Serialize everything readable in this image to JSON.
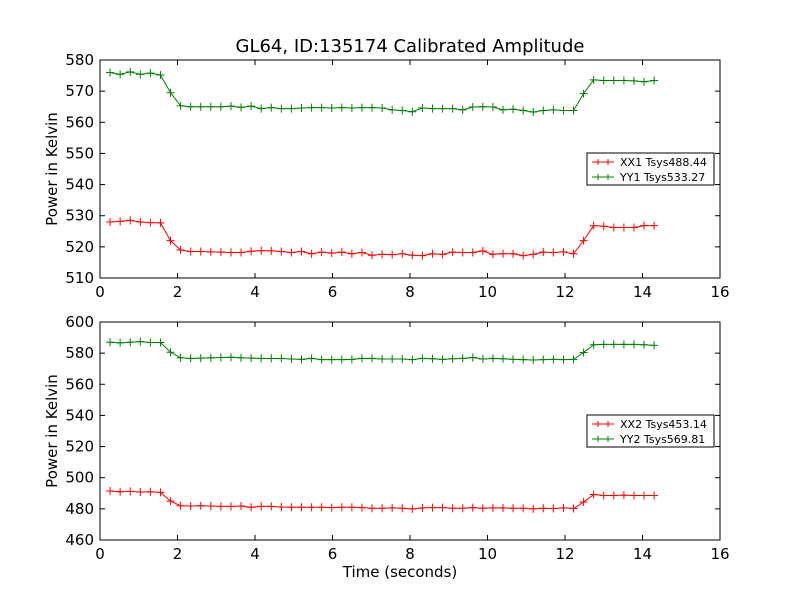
{
  "chart_data": [
    {
      "type": "line",
      "title": "GL64, ID:135174 Calibrated Amplitude",
      "xlabel": "",
      "ylabel": "Power in Kelvin",
      "xlim": [
        0,
        16
      ],
      "ylim": [
        510,
        580
      ],
      "xticks": [
        "0",
        "2",
        "4",
        "6",
        "8",
        "10",
        "12",
        "14",
        "16"
      ],
      "yticks": [
        "510",
        "520",
        "530",
        "540",
        "550",
        "560",
        "570",
        "580"
      ],
      "grid": false,
      "legend_position": "right",
      "x": [
        0.26,
        0.52,
        0.78,
        1.04,
        1.3,
        1.56,
        1.82,
        2.08,
        2.34,
        2.6,
        2.86,
        3.12,
        3.38,
        3.64,
        3.9,
        4.16,
        4.42,
        4.68,
        4.94,
        5.2,
        5.46,
        5.72,
        5.98,
        6.24,
        6.5,
        6.76,
        7.02,
        7.28,
        7.54,
        7.8,
        8.06,
        8.32,
        8.58,
        8.84,
        9.1,
        9.36,
        9.62,
        9.88,
        10.14,
        10.4,
        10.66,
        10.92,
        11.18,
        11.44,
        11.7,
        11.96,
        12.22,
        12.48,
        12.74,
        13.0,
        13.26,
        13.52,
        13.78,
        14.04,
        14.3
      ],
      "series": [
        {
          "name": "XX1 Tsys488.44",
          "color": "#ff0000",
          "values": [
            528.0,
            528.2,
            528.5,
            528.0,
            527.8,
            527.7,
            522.0,
            519.0,
            518.5,
            518.5,
            518.4,
            518.3,
            518.2,
            518.2,
            518.6,
            518.8,
            518.7,
            518.5,
            518.2,
            518.5,
            517.8,
            518.3,
            518.0,
            518.3,
            517.8,
            518.2,
            517.3,
            517.6,
            517.5,
            517.8,
            517.3,
            517.2,
            517.8,
            517.6,
            518.3,
            518.2,
            518.2,
            518.7,
            517.6,
            517.8,
            517.8,
            517.2,
            517.6,
            518.3,
            518.2,
            518.4,
            517.8,
            522.0,
            526.8,
            526.6,
            526.2,
            526.2,
            526.2,
            526.8,
            526.8
          ]
        },
        {
          "name": "YY1 Tsys533.27",
          "color": "#008000",
          "values": [
            576.0,
            575.4,
            576.2,
            575.4,
            575.8,
            575.2,
            569.5,
            565.3,
            565.0,
            565.0,
            565.0,
            565.0,
            565.2,
            564.8,
            565.2,
            564.4,
            564.7,
            564.4,
            564.4,
            564.6,
            564.7,
            564.7,
            564.6,
            564.7,
            564.6,
            564.7,
            564.7,
            564.6,
            564.0,
            563.8,
            563.4,
            564.6,
            564.4,
            564.4,
            564.4,
            564.0,
            564.9,
            565.0,
            564.9,
            564.0,
            564.2,
            563.8,
            563.3,
            563.8,
            564.0,
            563.8,
            563.8,
            569.2,
            573.6,
            573.4,
            573.4,
            573.4,
            573.3,
            573.0,
            573.4
          ]
        }
      ]
    },
    {
      "type": "line",
      "title": "",
      "xlabel": "Time (seconds)",
      "ylabel": "Power in Kelvin",
      "xlim": [
        0,
        16
      ],
      "ylim": [
        460,
        600
      ],
      "xticks": [
        "0",
        "2",
        "4",
        "6",
        "8",
        "10",
        "12",
        "14",
        "16"
      ],
      "yticks": [
        "460",
        "480",
        "500",
        "520",
        "540",
        "560",
        "580",
        "600"
      ],
      "grid": false,
      "legend_position": "right",
      "x": [
        0.26,
        0.52,
        0.78,
        1.04,
        1.3,
        1.56,
        1.82,
        2.08,
        2.34,
        2.6,
        2.86,
        3.12,
        3.38,
        3.64,
        3.9,
        4.16,
        4.42,
        4.68,
        4.94,
        5.2,
        5.46,
        5.72,
        5.98,
        6.24,
        6.5,
        6.76,
        7.02,
        7.28,
        7.54,
        7.8,
        8.06,
        8.32,
        8.58,
        8.84,
        9.1,
        9.36,
        9.62,
        9.88,
        10.14,
        10.4,
        10.66,
        10.92,
        11.18,
        11.44,
        11.7,
        11.96,
        12.22,
        12.48,
        12.74,
        13.0,
        13.26,
        13.52,
        13.78,
        14.04,
        14.3
      ],
      "series": [
        {
          "name": "XX2 Tsys453.14",
          "color": "#ff0000",
          "values": [
            491.5,
            491.0,
            491.2,
            490.8,
            491.0,
            490.6,
            485.0,
            482.0,
            481.8,
            482.0,
            481.8,
            481.6,
            481.6,
            481.8,
            481.0,
            481.6,
            481.6,
            481.2,
            481.0,
            481.0,
            481.0,
            481.0,
            480.8,
            481.0,
            481.0,
            480.8,
            480.4,
            480.4,
            480.6,
            480.4,
            480.0,
            480.6,
            480.8,
            480.8,
            480.4,
            480.4,
            480.8,
            480.4,
            480.6,
            480.6,
            480.4,
            480.4,
            480.0,
            480.4,
            480.2,
            480.6,
            480.2,
            484.4,
            489.2,
            488.6,
            488.6,
            488.8,
            488.6,
            488.6,
            488.6
          ]
        },
        {
          "name": "YY2 Tsys569.81",
          "color": "#008000",
          "values": [
            587.0,
            586.6,
            587.0,
            587.4,
            586.8,
            586.8,
            580.6,
            577.0,
            576.6,
            576.8,
            577.0,
            577.2,
            577.4,
            577.0,
            576.8,
            576.6,
            576.6,
            576.6,
            576.2,
            576.0,
            576.6,
            575.8,
            575.8,
            575.8,
            576.0,
            576.6,
            576.6,
            576.2,
            576.2,
            576.2,
            575.8,
            576.6,
            576.4,
            576.0,
            576.4,
            576.6,
            577.2,
            576.2,
            576.6,
            576.4,
            576.0,
            575.8,
            575.6,
            575.8,
            576.0,
            575.8,
            576.0,
            580.4,
            585.4,
            585.6,
            585.6,
            585.6,
            585.6,
            585.4,
            585.0
          ]
        }
      ]
    }
  ]
}
